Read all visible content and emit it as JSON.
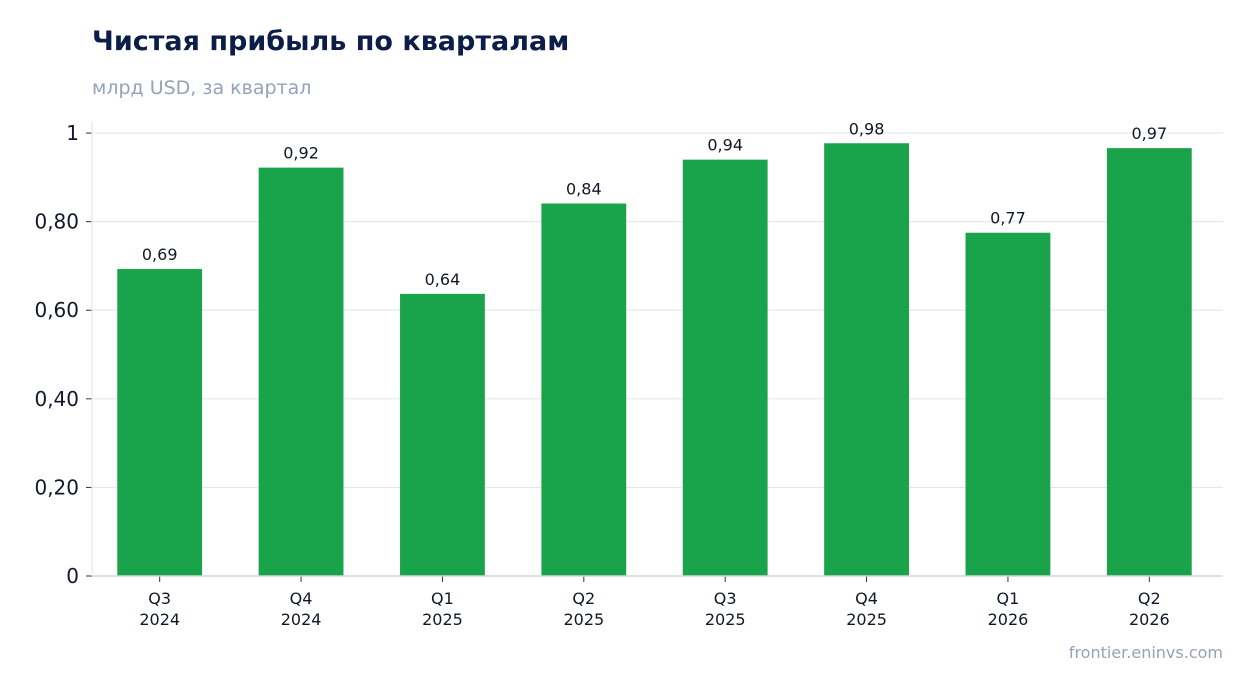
{
  "header": {
    "title": "Чистая прибыль по кварталам",
    "subtitle": "млрд USD, за квартал"
  },
  "footer": {
    "source": "frontier.eninvs.com"
  },
  "colors": {
    "bar": "#19a34a",
    "grid": "#e5e7eb",
    "axis": "#d1d5db",
    "title": "#0b1d48",
    "muted": "#94a3b8"
  },
  "chart_data": {
    "type": "bar",
    "title": "Чистая прибыль по кварталам",
    "subtitle": "млрд USD, за квартал",
    "xlabel": "",
    "ylabel": "",
    "categories": [
      [
        "Q3",
        "2024"
      ],
      [
        "Q4",
        "2024"
      ],
      [
        "Q1",
        "2025"
      ],
      [
        "Q2",
        "2025"
      ],
      [
        "Q3",
        "2025"
      ],
      [
        "Q4",
        "2025"
      ],
      [
        "Q1",
        "2026"
      ],
      [
        "Q2",
        "2026"
      ]
    ],
    "values": [
      0.693,
      0.922,
      0.637,
      0.841,
      0.94,
      0.977,
      0.775,
      0.966
    ],
    "data_labels": [
      "0,69",
      "0,92",
      "0,64",
      "0,84",
      "0,94",
      "0,98",
      "0,77",
      "0,97"
    ],
    "ylim": [
      0,
      1.025
    ],
    "yticks": [
      0,
      0.2,
      0.4,
      0.6,
      0.8,
      1
    ],
    "ytick_labels": [
      "0",
      "0,20",
      "0,40",
      "0,60",
      "0,80",
      "1"
    ],
    "grid": true,
    "legend": "none"
  }
}
